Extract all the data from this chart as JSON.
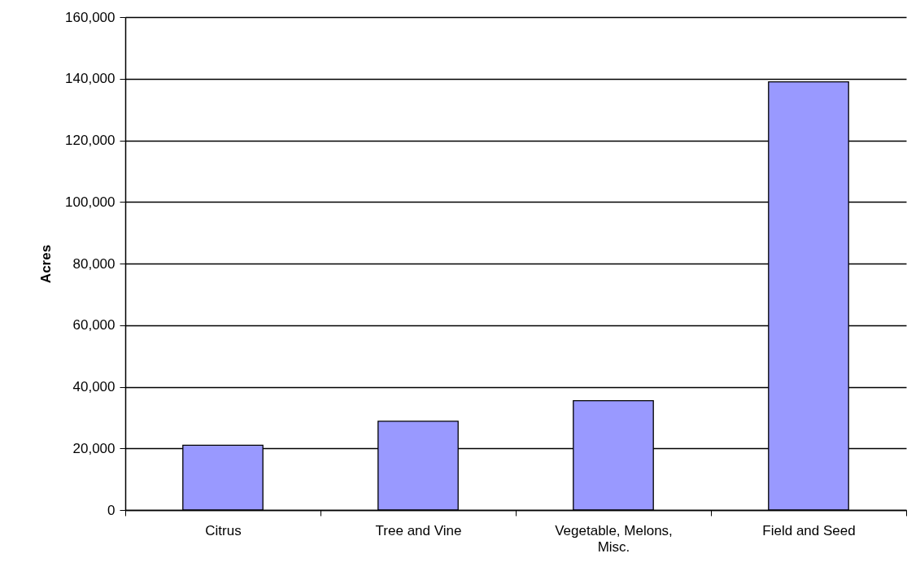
{
  "chart_data": {
    "type": "bar",
    "ylabel": "Acres",
    "categories": [
      "Citrus",
      "Tree and Vine",
      "Vegetable, Melons, Misc.",
      "Field and Seed"
    ],
    "values": [
      21000,
      28800,
      35500,
      139000
    ],
    "color": "#9999ff",
    "ylim": [
      0,
      160000
    ],
    "yticks": [
      0,
      {
        "value": 20000,
        "label": "20,000"
      },
      {
        "value": 40000,
        "label": "40,000"
      },
      {
        "value": 60000,
        "label": "60,000"
      },
      {
        "value": 80000,
        "label": "80,000"
      },
      {
        "value": 100000,
        "label": "100,000"
      },
      {
        "value": 120000,
        "label": "120,000"
      },
      {
        "value": 140000,
        "label": "140,000"
      },
      {
        "value": 160000,
        "label": "160,000"
      }
    ],
    "grid": "y"
  }
}
